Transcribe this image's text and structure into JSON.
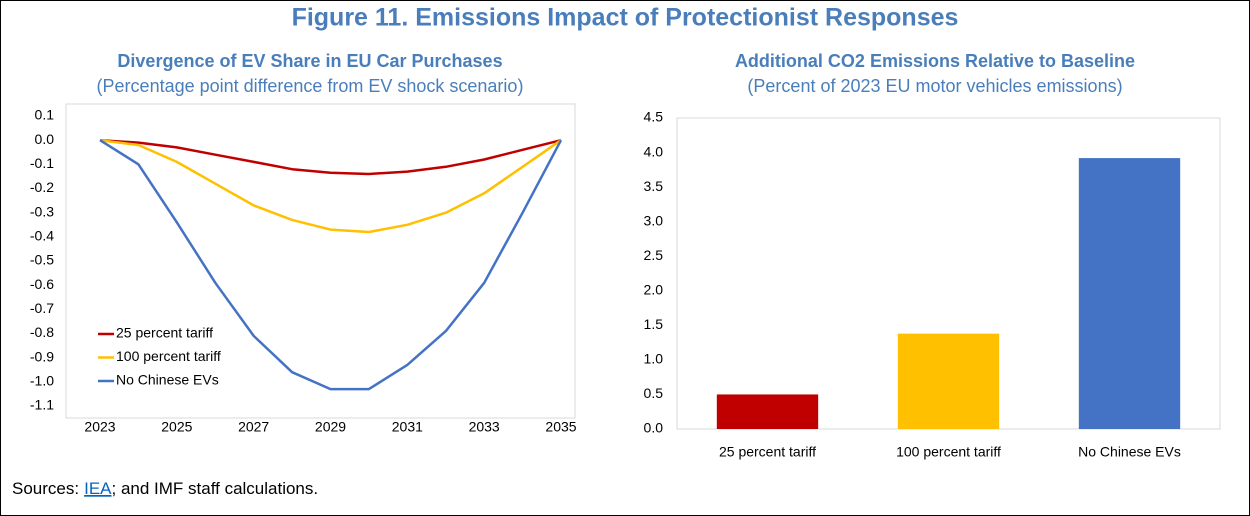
{
  "title": "Figure 11. Emissions Impact of Protectionist Responses",
  "chart_data": [
    {
      "type": "line",
      "title": "Divergence of EV Share in EU Car Purchases",
      "subtitle": "(Percentage point difference from EV shock scenario)",
      "x": [
        2023,
        2024,
        2025,
        2026,
        2027,
        2028,
        2029,
        2030,
        2031,
        2032,
        2033,
        2034,
        2035
      ],
      "series": [
        {
          "name": "25 percent tariff",
          "color": "#c00000",
          "values": [
            0,
            -0.01,
            -0.03,
            -0.06,
            -0.09,
            -0.12,
            -0.135,
            -0.14,
            -0.13,
            -0.11,
            -0.08,
            -0.04,
            0
          ]
        },
        {
          "name": "100 percent tariff",
          "color": "#ffc000",
          "values": [
            0,
            -0.02,
            -0.09,
            -0.18,
            -0.27,
            -0.33,
            -0.37,
            -0.38,
            -0.35,
            -0.3,
            -0.22,
            -0.11,
            0
          ]
        },
        {
          "name": "No Chinese EVs",
          "color": "#4472c4",
          "values": [
            0,
            -0.1,
            -0.34,
            -0.59,
            -0.81,
            -0.96,
            -1.03,
            -1.03,
            -0.93,
            -0.79,
            -0.59,
            -0.3,
            0
          ]
        }
      ],
      "xlim": [
        2023,
        2035
      ],
      "xticks": [
        2023,
        2025,
        2027,
        2029,
        2031,
        2033,
        2035
      ],
      "ylim": [
        -1.1,
        0.1
      ],
      "yticks": [
        0.1,
        {
          "value": 0,
          "label": "0.0"
        },
        -0.1,
        -0.2,
        -0.3,
        -0.4,
        -0.5,
        -0.6,
        -0.7,
        -0.8,
        -0.9,
        {
          "value": -1,
          "label": "-1.0"
        },
        -1.1
      ],
      "legend": "lower left"
    },
    {
      "type": "bar",
      "title": "Additional CO2 Emissions Relative to Baseline",
      "subtitle": "(Percent of 2023 EU motor vehicles emissions)",
      "categories": [
        "25 percent tariff",
        "100 percent tariff",
        "No Chinese EVs"
      ],
      "values": [
        0.5,
        1.38,
        3.92
      ],
      "colors": [
        "#c00000",
        "#ffc000",
        "#4472c4"
      ],
      "ylim": [
        0,
        4.5
      ],
      "yticks": [
        {
          "value": 0,
          "label": "0.0"
        },
        0.5,
        {
          "value": 1,
          "label": "1.0"
        },
        1.5,
        {
          "value": 2,
          "label": "2.0"
        },
        2.5,
        {
          "value": 3,
          "label": "3.0"
        },
        3.5,
        {
          "value": 4,
          "label": "4.0"
        },
        4.5
      ]
    }
  ],
  "source": {
    "prefix": "Sources:",
    "link": "IEA",
    "suffix": "; and IMF staff calculations."
  }
}
